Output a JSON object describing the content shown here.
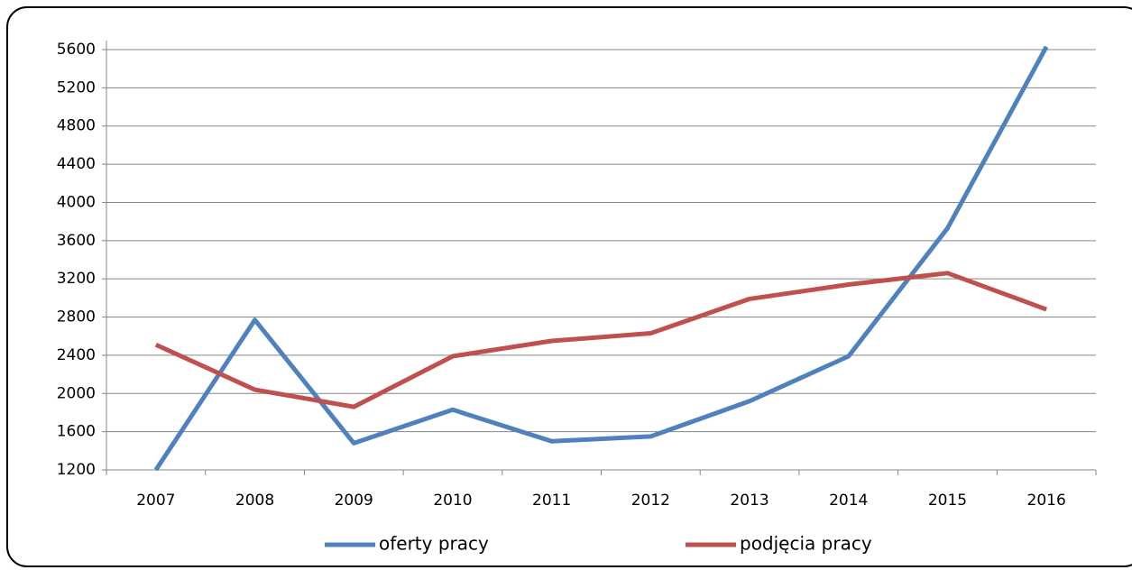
{
  "chart_data": {
    "type": "line",
    "categories": [
      "2007",
      "2008",
      "2009",
      "2010",
      "2011",
      "2012",
      "2013",
      "2014",
      "2015",
      "2016"
    ],
    "series": [
      {
        "name": "oferty pracy",
        "color": "#4f81bd",
        "values": [
          1200,
          2770,
          1480,
          1830,
          1500,
          1550,
          1920,
          2390,
          3730,
          5630
        ]
      },
      {
        "name": "podjęcia pracy",
        "color": "#c0504d",
        "values": [
          2510,
          2040,
          1860,
          2390,
          2550,
          2630,
          2990,
          3140,
          3260,
          2880
        ]
      }
    ],
    "ylim": [
      1200,
      5600
    ],
    "yticks": [
      1200,
      1600,
      2000,
      2400,
      2800,
      3200,
      3600,
      4000,
      4400,
      4800,
      5200,
      5600
    ],
    "grid": true,
    "legend": "bottom"
  }
}
